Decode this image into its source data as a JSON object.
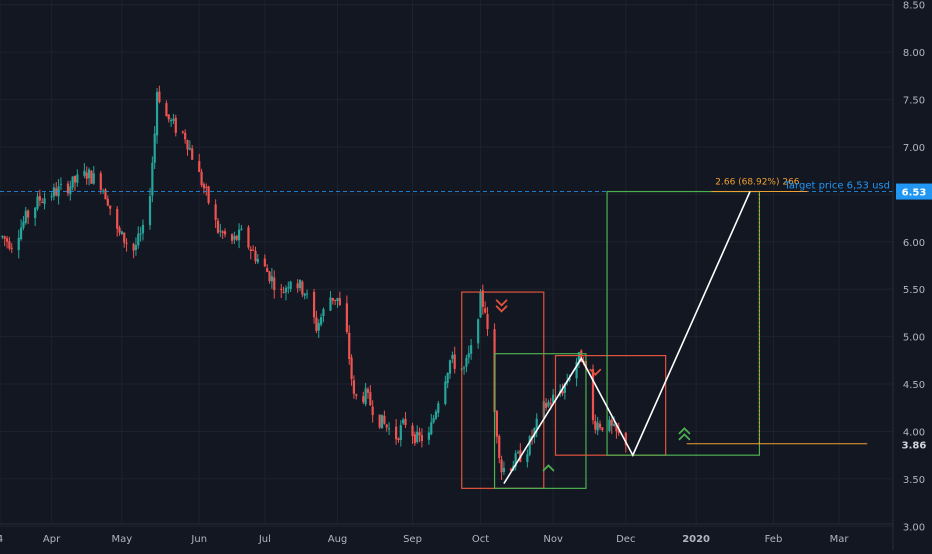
{
  "chart_data": {
    "type": "candlestick",
    "y_axis": {
      "ticks": [
        "3.00",
        "3.50",
        "4.00",
        "4.50",
        "5.00",
        "5.50",
        "6.00",
        "6.50",
        "7.00",
        "7.50",
        "8.00",
        "8.50"
      ],
      "range": [
        2.75,
        8.55
      ]
    },
    "x_axis": {
      "ticks": [
        {
          "label": "4",
          "date": "2019-03-10"
        },
        {
          "label": "Apr",
          "date": "2019-04-01"
        },
        {
          "label": "May",
          "date": "2019-05-01"
        },
        {
          "label": "Jun",
          "date": "2019-06-03"
        },
        {
          "label": "Jul",
          "date": "2019-07-01"
        },
        {
          "label": "Aug",
          "date": "2019-08-01"
        },
        {
          "label": "Sep",
          "date": "2019-09-02"
        },
        {
          "label": "Oct",
          "date": "2019-10-01"
        },
        {
          "label": "Nov",
          "date": "2019-11-01"
        },
        {
          "label": "Dec",
          "date": "2019-12-02"
        },
        {
          "label": "2020",
          "date": "2020-01-01"
        },
        {
          "label": "Feb",
          "date": "2020-02-03"
        },
        {
          "label": "Mar",
          "date": "2020-03-02"
        }
      ],
      "range": [
        "2019-03-10",
        "2020-03-25"
      ]
    },
    "price_path": [
      [
        "2019-03-11",
        6.05
      ],
      [
        "2019-03-15",
        5.98
      ],
      [
        "2019-03-21",
        6.25
      ],
      [
        "2019-03-27",
        6.45
      ],
      [
        "2019-04-02",
        6.52
      ],
      [
        "2019-04-09",
        6.6
      ],
      [
        "2019-04-16",
        6.72
      ],
      [
        "2019-04-22",
        6.62
      ],
      [
        "2019-04-25",
        6.45
      ],
      [
        "2019-04-29",
        6.1
      ],
      [
        "2019-05-06",
        5.92
      ],
      [
        "2019-05-10",
        6.1
      ],
      [
        "2019-05-13",
        6.55
      ],
      [
        "2019-05-15",
        7.15
      ],
      [
        "2019-05-16",
        7.6
      ],
      [
        "2019-05-20",
        7.32
      ],
      [
        "2019-05-24",
        7.2
      ],
      [
        "2019-05-28",
        7.12
      ],
      [
        "2019-06-03",
        6.7
      ],
      [
        "2019-06-06",
        6.5
      ],
      [
        "2019-06-11",
        6.12
      ],
      [
        "2019-06-17",
        6.0
      ],
      [
        "2019-06-21",
        6.08
      ],
      [
        "2019-06-27",
        5.85
      ],
      [
        "2019-07-03",
        5.65
      ],
      [
        "2019-07-08",
        5.45
      ],
      [
        "2019-07-12",
        5.62
      ],
      [
        "2019-07-18",
        5.48
      ],
      [
        "2019-07-23",
        5.1
      ],
      [
        "2019-07-29",
        5.42
      ],
      [
        "2019-08-01",
        5.4
      ],
      [
        "2019-08-05",
        5.0
      ],
      [
        "2019-08-08",
        4.35
      ],
      [
        "2019-08-13",
        4.38
      ],
      [
        "2019-08-19",
        4.12
      ],
      [
        "2019-08-26",
        3.95
      ],
      [
        "2019-08-30",
        4.1
      ],
      [
        "2019-09-04",
        3.92
      ],
      [
        "2019-09-09",
        3.95
      ],
      [
        "2019-09-13",
        4.35
      ],
      [
        "2019-09-18",
        4.75
      ],
      [
        "2019-09-24",
        4.65
      ],
      [
        "2019-09-27",
        4.85
      ],
      [
        "2019-10-01",
        5.4
      ],
      [
        "2019-10-03",
        5.3
      ],
      [
        "2019-10-07",
        4.2
      ],
      [
        "2019-10-10",
        3.6
      ],
      [
        "2019-10-14",
        3.65
      ],
      [
        "2019-10-21",
        3.82
      ],
      [
        "2019-10-28",
        4.25
      ],
      [
        "2019-11-05",
        4.45
      ],
      [
        "2019-11-11",
        4.75
      ],
      [
        "2019-11-14",
        4.8
      ],
      [
        "2019-11-18",
        4.1
      ],
      [
        "2019-11-25",
        4.05
      ],
      [
        "2019-11-29",
        3.95
      ],
      [
        "2019-12-02",
        3.9
      ]
    ],
    "current_price": {
      "value": 3.86,
      "label": "3.86"
    },
    "target": {
      "value": 6.53,
      "label": "6.53",
      "text": "Target price 6,53 usd"
    },
    "measure_text": "2.66 (68.92%) 266",
    "annotations": {
      "boxes": [
        {
          "kind": "red",
          "x0": "2019-09-23",
          "x1": "2019-10-28",
          "y0": 3.4,
          "y1": 5.47
        },
        {
          "kind": "green",
          "x0": "2019-10-07",
          "x1": "2019-11-15",
          "y0": 3.4,
          "y1": 4.82
        },
        {
          "kind": "red",
          "x0": "2019-11-02",
          "x1": "2019-12-19",
          "y0": 3.75,
          "y1": 4.8
        },
        {
          "kind": "green",
          "x0": "2019-11-24",
          "x1": "2020-01-28",
          "y0": 3.75,
          "y1": 6.53
        }
      ],
      "zigzag": [
        [
          "2019-10-11",
          3.45
        ],
        [
          "2019-11-13",
          4.77
        ],
        [
          "2019-12-05",
          3.75
        ],
        [
          "2020-01-24",
          6.53
        ]
      ],
      "arrows": [
        {
          "symbol": "double-down",
          "kind": "red",
          "date": "2019-10-10",
          "value": 5.32
        },
        {
          "symbol": "down",
          "kind": "red",
          "date": "2019-11-19",
          "value": 4.62
        },
        {
          "symbol": "up",
          "kind": "green",
          "date": "2019-10-30",
          "value": 3.62
        },
        {
          "symbol": "double-up",
          "kind": "green",
          "date": "2019-12-27",
          "value": 3.98
        }
      ],
      "orange_line": {
        "x0": "2019-12-28",
        "x1": "2020-03-14",
        "value": 3.87
      }
    },
    "colors": {
      "up": "#26a69a",
      "down": "#ef5350",
      "box_red": "#e0533d",
      "box_green": "#4caf50",
      "target": "#2196f3",
      "orange": "#f0a030",
      "text": "#b2b5be",
      "background": "#131722"
    }
  }
}
